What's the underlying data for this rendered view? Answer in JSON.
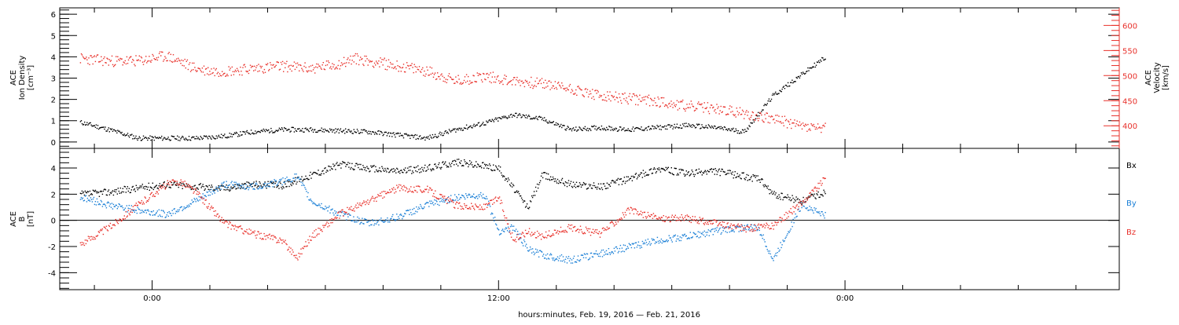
{
  "chart_data": [
    {
      "type": "scatter",
      "panel": "top",
      "ylabel_lines": [
        "ACE",
        "Ion Density",
        "[cm⁻³]"
      ],
      "y2label_lines": [
        "ACE",
        "Velocity",
        "[km/s]"
      ],
      "ylim": [
        -0.3,
        6.3
      ],
      "y_ticks": [
        0,
        1,
        2,
        3,
        4,
        5,
        6
      ],
      "y_tick_labels": [
        "0",
        "1",
        "2",
        "3",
        "4",
        "5",
        "6"
      ],
      "y2lim": [
        355,
        635
      ],
      "y2_ticks": [
        400,
        450,
        500,
        550,
        600
      ],
      "y2_tick_labels": [
        "400",
        "450",
        "500",
        "550",
        "600"
      ],
      "color_left": "#000000",
      "color_right": "#e8302a",
      "series": [
        {
          "axis": "left",
          "color": "#000000",
          "x": [
            -2.5,
            -1.5,
            -0.5,
            0.5,
            1.5,
            2.5,
            3.5,
            4.5,
            5.5,
            6.5,
            7.5,
            8.5,
            9.5,
            10.5,
            11.5,
            12.5,
            13.5,
            14.5,
            15.5,
            16.5,
            17.5,
            18.5,
            19.5,
            20.5,
            21.5,
            22.5,
            23.3
          ],
          "y": [
            0.95,
            0.6,
            0.2,
            0.2,
            0.2,
            0.3,
            0.5,
            0.6,
            0.6,
            0.55,
            0.5,
            0.35,
            0.2,
            0.6,
            0.9,
            1.3,
            1.1,
            0.6,
            0.7,
            0.6,
            0.7,
            0.8,
            0.7,
            0.5,
            2.2,
            3.2,
            4.0
          ]
        },
        {
          "axis": "right",
          "color": "#e8302a",
          "x": [
            -2.5,
            -1.5,
            -0.5,
            0.5,
            1.5,
            2.0,
            2.5,
            3.5,
            4.5,
            5.5,
            6.5,
            7.0,
            7.5,
            8.5,
            9.5,
            10.5,
            11.5,
            12.5,
            13.5,
            14.5,
            15.5,
            16.5,
            17.5,
            18.5,
            19.5,
            20.5,
            21.5,
            22.5,
            23.3
          ],
          "y": [
            535,
            530,
            530,
            540,
            515,
            510,
            510,
            515,
            520,
            515,
            525,
            535,
            530,
            520,
            510,
            490,
            500,
            490,
            485,
            475,
            460,
            455,
            450,
            440,
            435,
            425,
            415,
            400,
            395
          ]
        }
      ]
    },
    {
      "type": "scatter",
      "panel": "bottom",
      "ylabel_lines": [
        "ACE",
        "B",
        "[nT]"
      ],
      "ylim": [
        -5.3,
        5.5
      ],
      "y_ticks": [
        -4,
        -2,
        0,
        2,
        4
      ],
      "y_tick_labels": [
        "-4",
        "-2",
        "0",
        "2",
        "4"
      ],
      "zero_line": true,
      "legend": [
        "Bx",
        "By",
        "Bz"
      ],
      "series": [
        {
          "name": "Bx",
          "color": "#000000",
          "x": [
            -2.5,
            -1.5,
            -0.5,
            0.5,
            1.5,
            2.5,
            3.5,
            4.5,
            5.5,
            6.5,
            7.5,
            8.5,
            9.5,
            10.5,
            11.5,
            12.0,
            12.5,
            13.0,
            13.5,
            14.5,
            15.5,
            16.5,
            17.5,
            18.5,
            19.5,
            20.5,
            21.0,
            21.5,
            22.5,
            23.3
          ],
          "y": [
            2.0,
            2.2,
            2.5,
            2.8,
            2.6,
            2.5,
            2.8,
            2.7,
            3.5,
            4.3,
            4.0,
            3.8,
            4.0,
            4.5,
            4.2,
            4.0,
            2.5,
            1.0,
            3.5,
            2.8,
            2.6,
            3.2,
            4.0,
            3.6,
            3.8,
            3.4,
            3.2,
            2.0,
            1.5,
            2.2
          ]
        },
        {
          "name": "By",
          "color": "#1a7fd6",
          "x": [
            -2.5,
            -1.5,
            -0.5,
            0.5,
            1.5,
            2.5,
            3.5,
            4.5,
            5.0,
            5.5,
            6.5,
            7.5,
            8.5,
            9.5,
            10.5,
            11.5,
            12.0,
            12.5,
            13.0,
            13.5,
            14.5,
            15.5,
            16.5,
            17.5,
            18.5,
            19.5,
            20.5,
            21.0,
            21.5,
            22.5,
            23.3
          ],
          "y": [
            1.8,
            1.2,
            0.8,
            0.5,
            1.5,
            2.8,
            2.6,
            3.0,
            3.4,
            1.5,
            0.5,
            -0.2,
            0.3,
            1.2,
            1.8,
            2.0,
            -0.8,
            -0.5,
            -2.2,
            -2.6,
            -3.0,
            -2.5,
            -2.0,
            -1.5,
            -1.2,
            -0.8,
            -0.5,
            -0.6,
            -3.0,
            1.3,
            0.4
          ]
        },
        {
          "name": "Bz",
          "color": "#e8302a",
          "x": [
            -2.5,
            -1.5,
            -0.5,
            0.5,
            1.0,
            1.5,
            2.5,
            3.5,
            4.5,
            5.0,
            5.5,
            6.5,
            7.5,
            8.5,
            9.5,
            10.5,
            11.5,
            12.0,
            12.5,
            13.0,
            13.5,
            14.5,
            15.5,
            16.5,
            17.5,
            18.5,
            19.5,
            20.5,
            21.5,
            22.5,
            23.3
          ],
          "y": [
            -1.8,
            -0.5,
            1.2,
            2.8,
            3.0,
            2.2,
            -0.2,
            -1.0,
            -1.5,
            -2.8,
            -1.2,
            0.5,
            1.5,
            2.5,
            2.4,
            1.2,
            1.0,
            1.8,
            -1.5,
            -0.8,
            -1.2,
            -0.5,
            -1.0,
            0.8,
            0.2,
            0.2,
            -0.2,
            -0.6,
            -0.4,
            1.4,
            3.2
          ]
        }
      ]
    }
  ],
  "x_axis": {
    "xlabel": "hours:minutes, Feb. 19, 2016 — Feb. 21, 2016",
    "xlim": [
      -3.2,
      33.5
    ],
    "major_ticks": [
      0,
      12,
      24
    ],
    "minor_ticks": [
      -2,
      2,
      4,
      6,
      8,
      10,
      14,
      16,
      18,
      20,
      22,
      26,
      28,
      30,
      32
    ],
    "tick_labels": [
      "0:00",
      "12:00",
      "0:00"
    ]
  }
}
